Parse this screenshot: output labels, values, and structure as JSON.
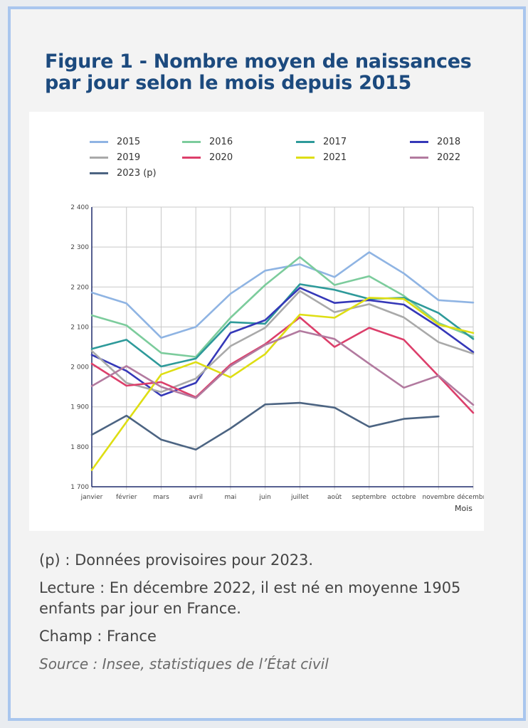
{
  "figure": {
    "title": "Figure 1 - Nombre moyen de naissances par jour selon le mois depuis 2015"
  },
  "notes": {
    "provisional": "(p) : Données provisoires pour 2023.",
    "reading": "Lecture : En décembre 2022, il est né en moyenne 1905 enfants par jour en France.",
    "scope": "Champ : France",
    "source": "Source : Insee, statistiques de l’État civil"
  },
  "colors": {
    "title": "#1c4a7e",
    "frame_border": "#a9c6ee",
    "axis": "#1f2a6b",
    "grid": "#c8c8c8"
  },
  "chart_data": {
    "type": "line",
    "title": "Figure 1 - Nombre moyen de naissances par jour selon le mois depuis 2015",
    "xlabel": "Mois",
    "ylabel": "",
    "ylim": [
      1700,
      2400
    ],
    "yticks": [
      1700,
      1800,
      1900,
      2000,
      2100,
      2200,
      2300,
      2400
    ],
    "ytick_labels": [
      "1 700",
      "1 800",
      "1 900",
      "2 000",
      "2 100",
      "2 200",
      "2 300",
      "2 400"
    ],
    "grid": true,
    "legend_position": "top",
    "categories": [
      "janvier",
      "février",
      "mars",
      "avril",
      "mai",
      "juin",
      "juillet",
      "août",
      "septembre",
      "octobre",
      "novembre",
      "décembre"
    ],
    "series": [
      {
        "name": "2015",
        "color": "#8fb4e3",
        "values": [
          2186,
          2159,
          2073,
          2100,
          2183,
          2241,
          2257,
          2225,
          2287,
          2234,
          2167,
          2161
        ]
      },
      {
        "name": "2016",
        "color": "#7ccc9c",
        "values": [
          2129,
          2104,
          2035,
          2025,
          2123,
          2205,
          2275,
          2205,
          2227,
          2178,
          2110,
          2075
        ]
      },
      {
        "name": "2017",
        "color": "#2e9a9a",
        "values": [
          2045,
          2068,
          2001,
          2021,
          2112,
          2108,
          2207,
          2193,
          2170,
          2173,
          2135,
          2070
        ]
      },
      {
        "name": "2018",
        "color": "#3538b8",
        "values": [
          2030,
          1990,
          1928,
          1960,
          2085,
          2117,
          2198,
          2160,
          2167,
          2156,
          2100,
          2037
        ]
      },
      {
        "name": "2019",
        "color": "#a9a9a9",
        "values": [
          2040,
          1960,
          1937,
          1971,
          2052,
          2098,
          2190,
          2137,
          2157,
          2124,
          2062,
          2033
        ]
      },
      {
        "name": "2020",
        "color": "#dc3f6b",
        "values": [
          2008,
          1953,
          1962,
          1924,
          2006,
          2057,
          2124,
          2050,
          2098,
          2068,
          1977,
          1885
        ]
      },
      {
        "name": "2021",
        "color": "#dede13",
        "values": [
          1742,
          1862,
          1981,
          2012,
          1974,
          2032,
          2131,
          2123,
          2173,
          2170,
          2106,
          2085
        ]
      },
      {
        "name": "2022",
        "color": "#b27a9f",
        "values": [
          1952,
          2002,
          1950,
          1922,
          2002,
          2055,
          2090,
          2070,
          2008,
          1948,
          1978,
          1905
        ]
      },
      {
        "name": "2023 (p)",
        "color": "#4c6482",
        "values": [
          1830,
          1878,
          1818,
          1793,
          1846,
          1906,
          1910,
          1898,
          1850,
          1870,
          1876,
          null
        ]
      }
    ]
  }
}
